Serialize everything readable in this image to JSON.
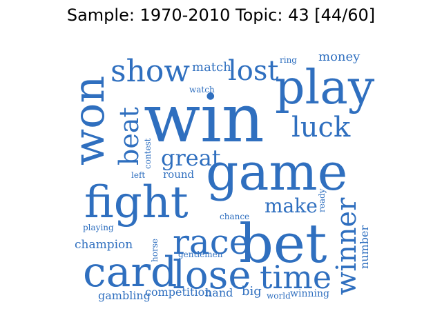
{
  "title": "Sample: 1970-2010 Topic: 43 [44/60]",
  "word_color": "#2f6fbf",
  "words": [
    "win",
    "game",
    "play",
    "bet",
    "fight",
    "card",
    "won",
    "lose",
    "race",
    "luck",
    "time",
    "show",
    "lost",
    "winner",
    "beat",
    "great",
    "make",
    "match",
    "money",
    "champion",
    "competition",
    "gambling",
    "hand",
    "big",
    "watch",
    "ring",
    "contest",
    "left",
    "round",
    "chance",
    "ready",
    "playing",
    "horse",
    "gentlemen",
    "number",
    "world",
    "winning"
  ]
}
